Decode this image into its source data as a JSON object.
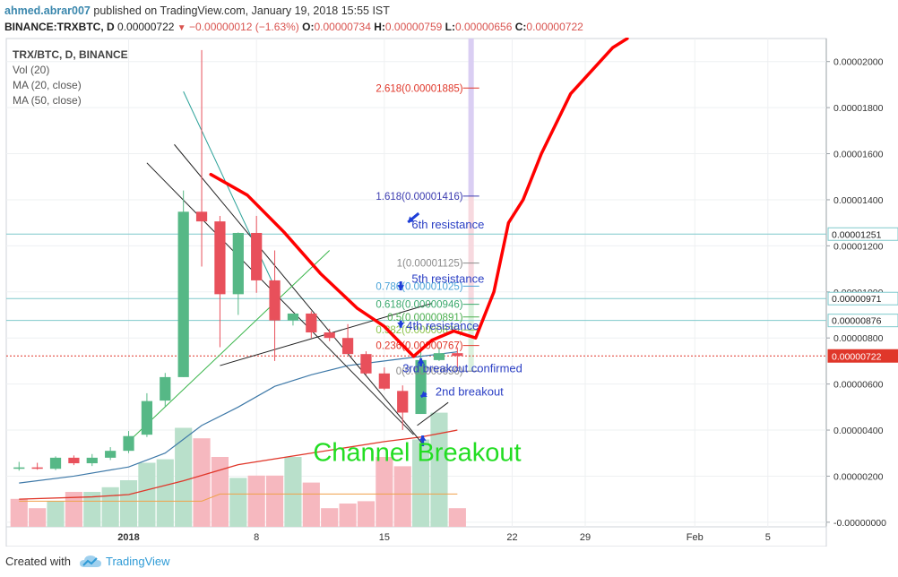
{
  "header": {
    "username": "ahmed.abrar007",
    "published_text": " published on TradingView.com, January 19, 2018 15:55 IST",
    "symbol": "BINANCE:TRXBTC, D",
    "last": "0.00000722",
    "change": "−0.00000012 (−1.63%)",
    "o_label": "O:",
    "o": "0.00000734",
    "h_label": "H:",
    "h": "0.00000759",
    "l_label": "L:",
    "l": "0.00000656",
    "c_label": "C:",
    "c": "0.00000722"
  },
  "legend": {
    "symbol": "TRX/BTC, D, BINANCE",
    "vol": "Vol (20)",
    "ma20": "MA (20, close)",
    "ma50": "MA (50, close)"
  },
  "footer": {
    "created_with": "Created with",
    "brand": "TradingView"
  },
  "colors": {
    "up": "#56b886",
    "down": "#e8505b",
    "vol_up": "#b9e0cb",
    "vol_down": "#f6b8bf",
    "ma20": "#3e79a8",
    "ma50": "#e0372a",
    "annotation_red": "#ff0000",
    "annotation_blue": "#1f3fd8",
    "channel_text": "#22dd22"
  },
  "chart_data": {
    "type": "candlestick",
    "y_axis": {
      "ticks": [
        "0.00002000",
        "0.00001800",
        "0.00001600",
        "0.00001400",
        "0.00001200",
        "0.00001000",
        "0.00000800",
        "0.00000600",
        "0.00000400",
        "0.00000200",
        "-0.00000000"
      ],
      "tick_values": [
        2.0,
        1.8,
        1.6,
        1.4,
        1.2,
        1.0,
        0.8,
        0.6,
        0.4,
        0.2,
        0.0
      ],
      "unit_note": "values in units of 1e-5 BTC",
      "ylim": [
        -0.02,
        2.1
      ]
    },
    "x_axis": {
      "ticks": [
        {
          "label": "2018",
          "day": 0
        },
        {
          "label": "8",
          "day": 7
        },
        {
          "label": "15",
          "day": 14
        },
        {
          "label": "22",
          "day": 21
        },
        {
          "label": "29",
          "day": 25
        },
        {
          "label": "Feb",
          "day": 31
        },
        {
          "label": "5",
          "day": 35
        }
      ],
      "xlim": [
        -6.7,
        38.2
      ]
    },
    "candles": [
      {
        "day": -6,
        "o": 0.232,
        "h": 0.262,
        "l": 0.224,
        "c": 0.238
      },
      {
        "day": -5,
        "o": 0.238,
        "h": 0.258,
        "l": 0.228,
        "c": 0.232
      },
      {
        "day": -4,
        "o": 0.232,
        "h": 0.286,
        "l": 0.226,
        "c": 0.28
      },
      {
        "day": -3,
        "o": 0.28,
        "h": 0.29,
        "l": 0.248,
        "c": 0.256
      },
      {
        "day": -2,
        "o": 0.256,
        "h": 0.296,
        "l": 0.244,
        "c": 0.28
      },
      {
        "day": -1,
        "o": 0.28,
        "h": 0.326,
        "l": 0.27,
        "c": 0.31
      },
      {
        "day": 0,
        "o": 0.31,
        "h": 0.396,
        "l": 0.3,
        "c": 0.374
      },
      {
        "day": 1,
        "o": 0.38,
        "h": 0.56,
        "l": 0.37,
        "c": 0.526
      },
      {
        "day": 2,
        "o": 0.528,
        "h": 0.648,
        "l": 0.5,
        "c": 0.63
      },
      {
        "day": 3,
        "o": 0.63,
        "h": 1.44,
        "l": 0.63,
        "c": 1.348
      },
      {
        "day": 4,
        "o": 1.348,
        "h": 2.05,
        "l": 1.11,
        "c": 1.306
      },
      {
        "day": 5,
        "o": 1.306,
        "h": 1.33,
        "l": 0.76,
        "c": 0.99
      },
      {
        "day": 6,
        "o": 0.99,
        "h": 1.258,
        "l": 0.9,
        "c": 1.256
      },
      {
        "day": 7,
        "o": 1.256,
        "h": 1.33,
        "l": 0.996,
        "c": 1.05
      },
      {
        "day": 8,
        "o": 1.05,
        "h": 1.18,
        "l": 0.7,
        "c": 0.876
      },
      {
        "day": 9,
        "o": 0.876,
        "h": 0.904,
        "l": 0.854,
        "c": 0.906
      },
      {
        "day": 10,
        "o": 0.906,
        "h": 0.916,
        "l": 0.8,
        "c": 0.824
      },
      {
        "day": 11,
        "o": 0.824,
        "h": 0.84,
        "l": 0.786,
        "c": 0.8
      },
      {
        "day": 12,
        "o": 0.8,
        "h": 0.86,
        "l": 0.734,
        "c": 0.73
      },
      {
        "day": 13,
        "o": 0.73,
        "h": 0.742,
        "l": 0.64,
        "c": 0.646
      },
      {
        "day": 14,
        "o": 0.646,
        "h": 0.672,
        "l": 0.574,
        "c": 0.58
      },
      {
        "day": 15,
        "o": 0.57,
        "h": 0.594,
        "l": 0.4,
        "c": 0.476
      },
      {
        "day": 16,
        "o": 0.47,
        "h": 0.75,
        "l": 0.47,
        "c": 0.704
      },
      {
        "day": 17,
        "o": 0.704,
        "h": 0.76,
        "l": 0.7,
        "c": 0.734
      },
      {
        "day": 18,
        "o": 0.734,
        "h": 0.759,
        "l": 0.656,
        "c": 0.722
      }
    ],
    "volume_bars": [
      {
        "day": -6,
        "v": 0.24,
        "dir": "down"
      },
      {
        "day": -5,
        "v": 0.16,
        "dir": "down"
      },
      {
        "day": -4,
        "v": 0.22,
        "dir": "up"
      },
      {
        "day": -3,
        "v": 0.3,
        "dir": "down"
      },
      {
        "day": -2,
        "v": 0.3,
        "dir": "up"
      },
      {
        "day": -1,
        "v": 0.34,
        "dir": "up"
      },
      {
        "day": 0,
        "v": 0.4,
        "dir": "up"
      },
      {
        "day": 1,
        "v": 0.55,
        "dir": "up"
      },
      {
        "day": 2,
        "v": 0.58,
        "dir": "up"
      },
      {
        "day": 3,
        "v": 0.85,
        "dir": "up"
      },
      {
        "day": 4,
        "v": 0.76,
        "dir": "down"
      },
      {
        "day": 5,
        "v": 0.6,
        "dir": "down"
      },
      {
        "day": 6,
        "v": 0.42,
        "dir": "up"
      },
      {
        "day": 7,
        "v": 0.44,
        "dir": "down"
      },
      {
        "day": 8,
        "v": 0.44,
        "dir": "down"
      },
      {
        "day": 9,
        "v": 0.6,
        "dir": "up"
      },
      {
        "day": 10,
        "v": 0.38,
        "dir": "down"
      },
      {
        "day": 11,
        "v": 0.16,
        "dir": "down"
      },
      {
        "day": 12,
        "v": 0.2,
        "dir": "down"
      },
      {
        "day": 13,
        "v": 0.22,
        "dir": "down"
      },
      {
        "day": 14,
        "v": 0.6,
        "dir": "down"
      },
      {
        "day": 15,
        "v": 0.52,
        "dir": "down"
      },
      {
        "day": 16,
        "v": 0.75,
        "dir": "up"
      },
      {
        "day": 17,
        "v": 0.98,
        "dir": "up"
      },
      {
        "day": 18,
        "v": 0.16,
        "dir": "down"
      }
    ],
    "ma20": [
      [
        -6,
        0.17
      ],
      [
        -3,
        0.2
      ],
      [
        0,
        0.24
      ],
      [
        2,
        0.3
      ],
      [
        4,
        0.42
      ],
      [
        6,
        0.5
      ],
      [
        8,
        0.59
      ],
      [
        10,
        0.64
      ],
      [
        12,
        0.68
      ],
      [
        14,
        0.7
      ],
      [
        16,
        0.72
      ],
      [
        18,
        0.74
      ]
    ],
    "ma50": [
      [
        -6,
        0.1
      ],
      [
        -2,
        0.11
      ],
      [
        0,
        0.12
      ],
      [
        3,
        0.18
      ],
      [
        6,
        0.25
      ],
      [
        10,
        0.3
      ],
      [
        14,
        0.35
      ],
      [
        16,
        0.37
      ],
      [
        18,
        0.4
      ]
    ],
    "horizontal_lines": [
      {
        "label": "0.00001251",
        "value": 1.251,
        "color": "#7fc9cc"
      },
      {
        "label": "0.00000971",
        "value": 0.971,
        "color": "#7fc9cc"
      },
      {
        "label": "0.00000876",
        "value": 0.876,
        "color": "#7fc9cc"
      },
      {
        "label": "0.00000722",
        "value": 0.722,
        "color": "#e0372a",
        "current": true
      }
    ],
    "fib_levels": [
      {
        "label": "2.618(0.00001885)",
        "value": 1.885,
        "color": "#e0372a"
      },
      {
        "label": "1.618(0.00001416)",
        "value": 1.416,
        "color": "#3b3bb0"
      },
      {
        "label": "1(0.00001125)",
        "value": 1.125,
        "color": "#8a8a8a"
      },
      {
        "label": "0.786(0.00001025)",
        "value": 1.025,
        "color": "#4aa3d8"
      },
      {
        "label": "0.618(0.00000946)",
        "value": 0.946,
        "color": "#39a86c"
      },
      {
        "label": "0.5(0.00000891)",
        "value": 0.891,
        "color": "#4caf50"
      },
      {
        "label": "0.382(0.00000835)",
        "value": 0.835,
        "color": "#8bc34a"
      },
      {
        "label": "0.236(0.00000767)",
        "value": 0.767,
        "color": "#e0372a"
      },
      {
        "label": "0(0.00000656)",
        "value": 0.656,
        "color": "#8a8a8a"
      }
    ],
    "fib_range_days": [
      18.6,
      18.9
    ],
    "trendlines": [
      {
        "p1": [
          1.0,
          1.56
        ],
        "p2": [
          15.6,
          0.38
        ],
        "color": "#222"
      },
      {
        "p1": [
          2.5,
          1.64
        ],
        "p2": [
          16.1,
          0.34
        ],
        "color": "#222"
      },
      {
        "p1": [
          5.0,
          0.68
        ],
        "p2": [
          16.6,
          0.95
        ],
        "color": "#222"
      },
      {
        "p1": [
          15.8,
          0.42
        ],
        "p2": [
          17.5,
          0.52
        ],
        "color": "#222"
      },
      {
        "p1": [
          3.0,
          1.87
        ],
        "p2": [
          8.0,
          1.02
        ],
        "color": "#2aa198"
      },
      {
        "p1": [
          0.0,
          0.35
        ],
        "p2": [
          11.0,
          1.18
        ],
        "color": "#39b54a"
      }
    ],
    "annotation_curve": [
      [
        4.5,
        1.51
      ],
      [
        6.5,
        1.42
      ],
      [
        8.5,
        1.26
      ],
      [
        10.5,
        1.08
      ],
      [
        12.5,
        0.93
      ],
      [
        14.0,
        0.85
      ],
      [
        15.6,
        0.72
      ],
      [
        16.6,
        0.79
      ],
      [
        17.8,
        0.83
      ],
      [
        19.0,
        0.8
      ],
      [
        20.0,
        1.0
      ],
      [
        20.8,
        1.3
      ],
      [
        21.6,
        1.4
      ],
      [
        22.6,
        1.6
      ],
      [
        24.2,
        1.86
      ],
      [
        26.5,
        2.06
      ],
      [
        27.3,
        2.1
      ]
    ],
    "annotations": [
      {
        "text": "6th resistance",
        "day": 15.5,
        "value": 1.295
      },
      {
        "text": "5th resistance",
        "day": 15.5,
        "value": 1.06
      },
      {
        "text": "4th resistance",
        "day": 15.2,
        "value": 0.855
      },
      {
        "text": "3rd breakout confirmed",
        "day": 15.0,
        "value": 0.67
      },
      {
        "text": "2nd breakout",
        "day": 16.8,
        "value": 0.57
      },
      {
        "text": "Channel Breakout",
        "day": 10.1,
        "value": 0.32
      }
    ]
  }
}
